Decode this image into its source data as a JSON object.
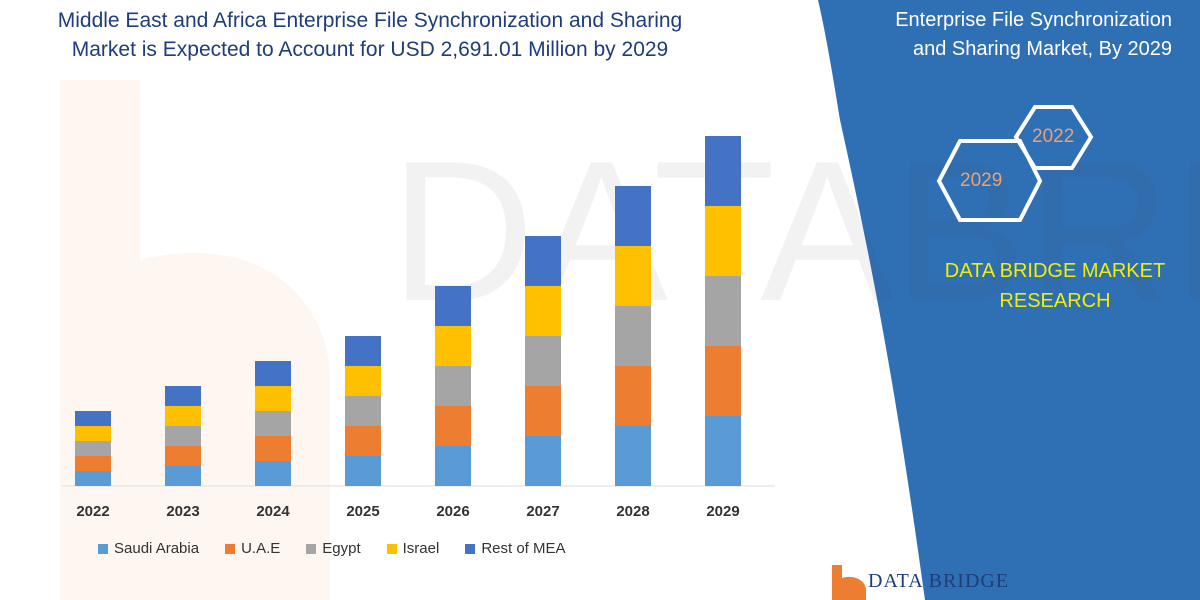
{
  "header": {
    "title_line1": "Middle East and Africa Enterprise File Synchronization and Sharing",
    "title_line2": "Market is Expected to Account for USD 2,691.01 Million by 2029"
  },
  "side_panel": {
    "title_line1": "Enterprise File Synchronization",
    "title_line2": "and Sharing Market, By 2029",
    "hex_years": [
      "2022",
      "2029"
    ],
    "brand_line1": "DATA BRIDGE MARKET",
    "brand_line2": "RESEARCH",
    "panel_color": "#2f6fb3"
  },
  "logo": {
    "text": "DATA BRIDGE"
  },
  "chart_data": {
    "type": "bar",
    "stacked": true,
    "categories": [
      "2022",
      "2023",
      "2024",
      "2025",
      "2026",
      "2027",
      "2028",
      "2029"
    ],
    "series": [
      {
        "name": "Saudi Arabia",
        "color": "#5b9bd5",
        "values": [
          15,
          20,
          25,
          30,
          40,
          50,
          60,
          70
        ]
      },
      {
        "name": "U.A.E",
        "color": "#ed7d31",
        "values": [
          15,
          20,
          25,
          30,
          40,
          50,
          60,
          70
        ]
      },
      {
        "name": "Egypt",
        "color": "#a5a5a5",
        "values": [
          15,
          20,
          25,
          30,
          40,
          50,
          60,
          70
        ]
      },
      {
        "name": "Israel",
        "color": "#ffc000",
        "values": [
          15,
          20,
          25,
          30,
          40,
          50,
          60,
          70
        ]
      },
      {
        "name": "Rest of MEA",
        "color": "#4472c4",
        "values": [
          15,
          20,
          25,
          30,
          40,
          50,
          60,
          70
        ]
      }
    ],
    "ylim": [
      0,
      360
    ],
    "grid": false,
    "y_axis_shown": false,
    "legend": "bottom"
  }
}
